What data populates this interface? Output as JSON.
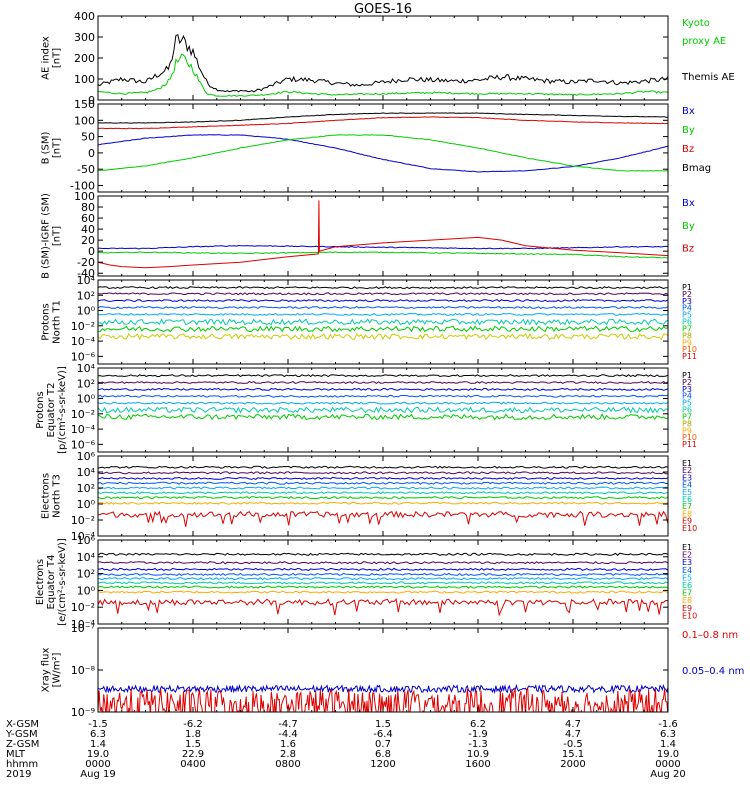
{
  "title": "GOES-16",
  "colors": {
    "frame": "#000000",
    "black": "#000000",
    "green": "#00cc00",
    "red": "#dd0000",
    "blue": "#0000cc"
  },
  "chart_data": [
    {
      "id": "ae",
      "type": "line",
      "ylabel": [
        "AE index",
        "[nT]"
      ],
      "ylim": [
        0,
        400
      ],
      "ticks": [
        {
          "v": 0,
          "t": "0"
        },
        {
          "v": 100,
          "t": "100"
        },
        {
          "v": 200,
          "t": "200"
        },
        {
          "v": 300,
          "t": "300"
        },
        {
          "v": 400,
          "t": "400"
        }
      ],
      "legend": [
        {
          "text": "Kyoto",
          "color": "green"
        },
        {
          "text": "proxy AE",
          "color": "green"
        },
        {
          "text": "",
          "color": "black"
        },
        {
          "text": "Themis AE",
          "color": "black"
        }
      ],
      "series": [
        {
          "name": "Themis AE",
          "color": "black",
          "x": [
            0,
            1,
            2,
            2.5,
            3,
            3.3,
            3.6,
            4,
            4.3,
            4.6,
            5,
            5.5,
            6,
            6.5,
            7,
            8,
            9,
            10,
            11,
            12,
            13,
            14,
            15,
            16,
            17,
            18,
            19,
            20,
            21,
            22,
            23,
            24
          ],
          "y": [
            70,
            100,
            85,
            120,
            150,
            290,
            280,
            230,
            150,
            80,
            50,
            40,
            45,
            40,
            55,
            100,
            95,
            80,
            70,
            85,
            100,
            95,
            90,
            95,
            110,
            100,
            90,
            85,
            95,
            80,
            90,
            100
          ]
        },
        {
          "name": "Kyoto proxy AE",
          "color": "green",
          "x": [
            0,
            1,
            2,
            2.5,
            3,
            3.3,
            3.6,
            4,
            4.3,
            4.6,
            5,
            6,
            7,
            8,
            9,
            10,
            12,
            14,
            16,
            18,
            20,
            22,
            23,
            24
          ],
          "y": [
            40,
            30,
            35,
            50,
            90,
            180,
            200,
            150,
            80,
            30,
            20,
            20,
            25,
            40,
            30,
            25,
            30,
            35,
            30,
            30,
            25,
            30,
            40,
            35
          ]
        }
      ]
    },
    {
      "id": "bsm",
      "type": "line",
      "ylabel": [
        "B (SM)",
        "[nT]"
      ],
      "ylim": [
        -120,
        150
      ],
      "ticks": [
        {
          "v": -100,
          "t": "-100"
        },
        {
          "v": -50,
          "t": "-50"
        },
        {
          "v": 0,
          "t": "0"
        },
        {
          "v": 50,
          "t": "50"
        },
        {
          "v": 100,
          "t": "100"
        },
        {
          "v": 150,
          "t": "150"
        }
      ],
      "legend": [
        {
          "text": "Bx",
          "color": "blue"
        },
        {
          "text": "By",
          "color": "green"
        },
        {
          "text": "Bz",
          "color": "red"
        },
        {
          "text": "Bmag",
          "color": "black"
        }
      ],
      "series": [
        {
          "name": "Bx",
          "color": "blue",
          "x": [
            0,
            2,
            4,
            6,
            8,
            10,
            12,
            14,
            16,
            18,
            20,
            22,
            24
          ],
          "y": [
            25,
            45,
            55,
            55,
            42,
            15,
            -20,
            -48,
            -58,
            -55,
            -42,
            -15,
            20
          ]
        },
        {
          "name": "By",
          "color": "green",
          "x": [
            0,
            2,
            4,
            6,
            8,
            10,
            12,
            14,
            16,
            18,
            20,
            22,
            24
          ],
          "y": [
            -55,
            -40,
            -15,
            15,
            40,
            55,
            55,
            40,
            15,
            -15,
            -40,
            -55,
            -55
          ]
        },
        {
          "name": "Bz",
          "color": "red",
          "x": [
            0,
            2,
            4,
            6,
            8,
            10,
            12,
            14,
            16,
            18,
            20,
            22,
            24
          ],
          "y": [
            75,
            75,
            80,
            85,
            90,
            100,
            108,
            110,
            108,
            100,
            95,
            92,
            90
          ]
        },
        {
          "name": "Bmag",
          "color": "black",
          "x": [
            0,
            2,
            4,
            6,
            8,
            10,
            12,
            14,
            16,
            18,
            20,
            22,
            24
          ],
          "y": [
            92,
            92,
            95,
            100,
            110,
            118,
            122,
            122,
            122,
            118,
            115,
            112,
            110
          ]
        }
      ]
    },
    {
      "id": "bigrf",
      "type": "line",
      "ylabel": [
        "B (SM)-IGRF (SM)",
        "[nT]"
      ],
      "ylim": [
        -45,
        100
      ],
      "ticks": [
        {
          "v": -40,
          "t": "-40"
        },
        {
          "v": -20,
          "t": "-20"
        },
        {
          "v": 0,
          "t": "0"
        },
        {
          "v": 20,
          "t": "20"
        },
        {
          "v": 40,
          "t": "40"
        },
        {
          "v": 60,
          "t": "60"
        },
        {
          "v": 80,
          "t": "80"
        },
        {
          "v": 100,
          "t": "100"
        }
      ],
      "legend": [
        {
          "text": "Bx",
          "color": "blue"
        },
        {
          "text": "By",
          "color": "green"
        },
        {
          "text": "Bz",
          "color": "red"
        }
      ],
      "series": [
        {
          "name": "Bx",
          "color": "blue",
          "x": [
            0,
            2,
            4,
            6,
            8,
            10,
            12,
            14,
            16,
            18,
            20,
            22,
            24
          ],
          "y": [
            5,
            5,
            8,
            10,
            9,
            8,
            7,
            6,
            5,
            5,
            6,
            8,
            8
          ]
        },
        {
          "name": "By",
          "color": "green",
          "x": [
            0,
            2,
            4,
            6,
            8,
            10,
            12,
            14,
            16,
            18,
            20,
            22,
            24
          ],
          "y": [
            -3,
            -2,
            -3,
            -4,
            -3,
            -2,
            -2,
            -3,
            -4,
            -5,
            -6,
            -10,
            -12
          ]
        },
        {
          "name": "Bz",
          "color": "red",
          "x": [
            0,
            0.5,
            1,
            2,
            3,
            4,
            6,
            8,
            9.28,
            9.3,
            9.32,
            10,
            12,
            14,
            16,
            17,
            18,
            20,
            22,
            24
          ],
          "y": [
            -20,
            -25,
            -28,
            -30,
            -28,
            -25,
            -20,
            -10,
            -5,
            92,
            0,
            8,
            15,
            20,
            25,
            20,
            10,
            2,
            -3,
            -8
          ]
        }
      ]
    },
    {
      "id": "protons_t1",
      "type": "line",
      "log": true,
      "ylabel": [
        "Protons",
        "North T1"
      ],
      "ylim": [
        -7,
        4
      ],
      "ticks": [
        {
          "v": 4,
          "t": "10⁴"
        },
        {
          "v": 2,
          "t": "10²"
        },
        {
          "v": 0,
          "t": "10⁰"
        },
        {
          "v": -2,
          "t": "10⁻²"
        },
        {
          "v": -4,
          "t": "10⁻⁴"
        },
        {
          "v": -6,
          "t": "10⁻⁶"
        }
      ],
      "legend": [
        {
          "text": "P1",
          "color": "#000000"
        },
        {
          "text": "P2",
          "color": "#550055"
        },
        {
          "text": "P3",
          "color": "#0000dd"
        },
        {
          "text": "P4",
          "color": "#0055ff"
        },
        {
          "text": "P5",
          "color": "#00aaff"
        },
        {
          "text": "P6",
          "color": "#00ccaa"
        },
        {
          "text": "P7",
          "color": "#00cc00"
        },
        {
          "text": "P8",
          "color": "#aaaa00"
        },
        {
          "text": "P9",
          "color": "#ffaa00"
        },
        {
          "text": "P10",
          "color": "#ff5500"
        },
        {
          "text": "P11",
          "color": "#dd0000"
        }
      ],
      "series": [
        {
          "name": "P1",
          "color": "#000000",
          "level": 3.0
        },
        {
          "name": "P2",
          "color": "#550055",
          "level": 2.2
        },
        {
          "name": "P3",
          "color": "#0000dd",
          "level": 1.3
        },
        {
          "name": "P4",
          "color": "#0055ff",
          "level": 0.4
        },
        {
          "name": "P5",
          "color": "#00aaff",
          "level": -0.5
        },
        {
          "name": "P6",
          "color": "#00ccaa",
          "level": -1.5
        },
        {
          "name": "P7",
          "color": "#00cc00",
          "level": -2.4
        },
        {
          "name": "P8",
          "color": "#cccc00",
          "level": -3.4
        }
      ]
    },
    {
      "id": "protons_t2",
      "type": "line",
      "log": true,
      "ylabel": [
        "Protons",
        "Equator T2",
        "[p/(cm²-s-sr-keV)]"
      ],
      "ylim": [
        -7,
        4
      ],
      "ticks": [
        {
          "v": 4,
          "t": "10⁴"
        },
        {
          "v": 2,
          "t": "10²"
        },
        {
          "v": 0,
          "t": "10⁰"
        },
        {
          "v": -2,
          "t": "10⁻²"
        },
        {
          "v": -4,
          "t": "10⁻⁴"
        },
        {
          "v": -6,
          "t": "10⁻⁶"
        }
      ],
      "legend": [
        {
          "text": "P1",
          "color": "#000000"
        },
        {
          "text": "P2",
          "color": "#550055"
        },
        {
          "text": "P3",
          "color": "#0000dd"
        },
        {
          "text": "P4",
          "color": "#0055ff"
        },
        {
          "text": "P5",
          "color": "#00aaff"
        },
        {
          "text": "P6",
          "color": "#00ccaa"
        },
        {
          "text": "P7",
          "color": "#00cc00"
        },
        {
          "text": "P8",
          "color": "#aaaa00"
        },
        {
          "text": "P9",
          "color": "#ffaa00"
        },
        {
          "text": "P10",
          "color": "#ff5500"
        },
        {
          "text": "P11",
          "color": "#dd0000"
        }
      ],
      "series": [
        {
          "name": "P1",
          "color": "#000000",
          "level": 3.0
        },
        {
          "name": "P2",
          "color": "#550055",
          "level": 2.1
        },
        {
          "name": "P3",
          "color": "#0000dd",
          "level": 1.2
        },
        {
          "name": "P4",
          "color": "#0055ff",
          "level": 0.3
        },
        {
          "name": "P5",
          "color": "#00aaff",
          "level": -0.6
        },
        {
          "name": "P6",
          "color": "#00ccaa",
          "level": -1.5
        },
        {
          "name": "P7",
          "color": "#00cc00",
          "level": -2.4
        }
      ]
    },
    {
      "id": "electrons_t3",
      "type": "line",
      "log": true,
      "ylabel": [
        "Electrons",
        "North T3"
      ],
      "ylim": [
        -4,
        6
      ],
      "ticks": [
        {
          "v": 6,
          "t": "10⁶"
        },
        {
          "v": 4,
          "t": "10⁴"
        },
        {
          "v": 2,
          "t": "10²"
        },
        {
          "v": 0,
          "t": "10⁰"
        },
        {
          "v": -2,
          "t": "10⁻²"
        },
        {
          "v": -4,
          "t": "10⁻⁴"
        }
      ],
      "legend": [
        {
          "text": "E1",
          "color": "#000000"
        },
        {
          "text": "E2",
          "color": "#550055"
        },
        {
          "text": "E3",
          "color": "#0000dd"
        },
        {
          "text": "E4",
          "color": "#0055ff"
        },
        {
          "text": "E5",
          "color": "#00aaff"
        },
        {
          "text": "E6",
          "color": "#00ccaa"
        },
        {
          "text": "E7",
          "color": "#00cc00"
        },
        {
          "text": "E8",
          "color": "#ffaa00"
        },
        {
          "text": "E9",
          "color": "#dd0000"
        },
        {
          "text": "E10",
          "color": "#dd0000"
        }
      ],
      "series": [
        {
          "name": "E1",
          "color": "#000000",
          "level": 4.6
        },
        {
          "name": "E2",
          "color": "#550055",
          "level": 3.9
        },
        {
          "name": "E3",
          "color": "#0000dd",
          "level": 3.2
        },
        {
          "name": "E4",
          "color": "#0055ff",
          "level": 2.6
        },
        {
          "name": "E5",
          "color": "#00aaff",
          "level": 2.0
        },
        {
          "name": "E6",
          "color": "#00ccaa",
          "level": 1.4
        },
        {
          "name": "E7",
          "color": "#00cc00",
          "level": 0.8
        },
        {
          "name": "E8",
          "color": "#ffaa00",
          "level": 0.1
        },
        {
          "name": "E9",
          "color": "#dd0000",
          "level": -1.3
        }
      ]
    },
    {
      "id": "electrons_t4",
      "type": "line",
      "log": true,
      "ylabel": [
        "Electrons",
        "Equator T4",
        "[e/(cm²-s-sr-keV)]"
      ],
      "ylim": [
        -4,
        6
      ],
      "ticks": [
        {
          "v": 6,
          "t": "10⁶"
        },
        {
          "v": 4,
          "t": "10⁴"
        },
        {
          "v": 2,
          "t": "10²"
        },
        {
          "v": 0,
          "t": "10⁰"
        },
        {
          "v": -2,
          "t": "10⁻²"
        },
        {
          "v": -4,
          "t": "10⁻⁴"
        }
      ],
      "legend": [
        {
          "text": "E1",
          "color": "#000000"
        },
        {
          "text": "E2",
          "color": "#550055"
        },
        {
          "text": "E3",
          "color": "#0000dd"
        },
        {
          "text": "E4",
          "color": "#0055ff"
        },
        {
          "text": "E5",
          "color": "#00aaff"
        },
        {
          "text": "E6",
          "color": "#00ccaa"
        },
        {
          "text": "E7",
          "color": "#00cc00"
        },
        {
          "text": "E8",
          "color": "#ffaa00"
        },
        {
          "text": "E9",
          "color": "#dd0000"
        },
        {
          "text": "E10",
          "color": "#dd0000"
        }
      ],
      "series": [
        {
          "name": "E1",
          "color": "#000000",
          "level": 4.3
        },
        {
          "name": "E2",
          "color": "#550055",
          "level": 3.3
        },
        {
          "name": "E3",
          "color": "#0000dd",
          "level": 2.5
        },
        {
          "name": "E4",
          "color": "#0055ff",
          "level": 1.9
        },
        {
          "name": "E5",
          "color": "#00aaff",
          "level": 1.4
        },
        {
          "name": "E6",
          "color": "#00ccaa",
          "level": 0.9
        },
        {
          "name": "E7",
          "color": "#00cc00",
          "level": 0.4
        },
        {
          "name": "E8",
          "color": "#ffaa00",
          "level": -0.2
        },
        {
          "name": "E9",
          "color": "#dd0000",
          "level": -1.4
        }
      ]
    },
    {
      "id": "xray",
      "type": "line",
      "log": true,
      "ylabel": [
        "Xray flux",
        "[W/m²]"
      ],
      "ylim": [
        -9,
        -7
      ],
      "ticks": [
        {
          "v": -7,
          "t": "10⁻⁷"
        },
        {
          "v": -8,
          "t": "10⁻⁸"
        },
        {
          "v": -9,
          "t": "10⁻⁹"
        }
      ],
      "legend": [
        {
          "text": "0.1–0.8 nm",
          "color": "red"
        },
        {
          "text": "0.05–0.4 nm",
          "color": "blue"
        }
      ],
      "series": [
        {
          "name": "0.05–0.4 nm",
          "color": "blue",
          "level": -8.45
        },
        {
          "name": "0.1–0.8 nm",
          "color": "red",
          "level": -8.8
        }
      ]
    }
  ],
  "orbit_table": {
    "row_labels": [
      "X-GSM",
      "Y-GSM",
      "Z-GSM",
      "MLT",
      "hhmm",
      "2019"
    ],
    "columns": [
      {
        "values": [
          "-1.5",
          "6.3",
          "1.4",
          "19.0",
          "0000",
          "Aug 19"
        ]
      },
      {
        "values": [
          "-6.2",
          "1.8",
          "1.5",
          "22.9",
          "0400",
          ""
        ]
      },
      {
        "values": [
          "-4.7",
          "-4.4",
          "1.6",
          "2.8",
          "0800",
          ""
        ]
      },
      {
        "values": [
          "1.5",
          "-6.4",
          "0.7",
          "6.8",
          "1200",
          ""
        ]
      },
      {
        "values": [
          "6.2",
          "-1.9",
          "-1.3",
          "10.9",
          "1600",
          ""
        ]
      },
      {
        "values": [
          "4.7",
          "4.7",
          "-0.5",
          "15.1",
          "2000",
          ""
        ]
      },
      {
        "values": [
          "-1.6",
          "6.3",
          "1.4",
          "19.0",
          "0000",
          "Aug 20"
        ]
      }
    ]
  }
}
